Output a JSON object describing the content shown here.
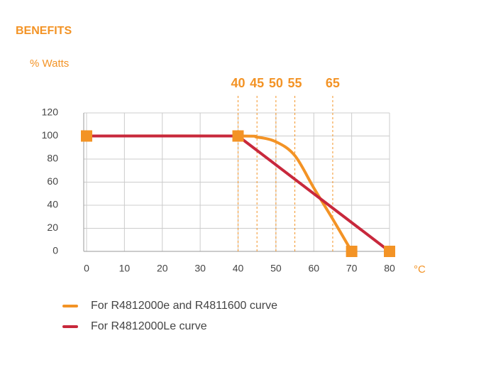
{
  "chart_data": {
    "type": "line",
    "header": "BENEFITS",
    "y_label": "% Watts",
    "x_label": "°C",
    "xlim": [
      0,
      80
    ],
    "xticks": [
      0,
      10,
      20,
      30,
      40,
      50,
      60,
      70,
      80
    ],
    "ylim": [
      0,
      120
    ],
    "yticks": [
      0,
      20,
      40,
      60,
      80,
      100,
      120
    ],
    "grid": true,
    "reference_lines": [
      40,
      45,
      50,
      55,
      65
    ],
    "reference_color": "#f39325",
    "marker_color": "#f39325",
    "series": [
      {
        "name": "For R4812000e and R4811600 curve",
        "color": "#f39325",
        "x": [
          0,
          40,
          45,
          50,
          55,
          60,
          65,
          70
        ],
        "values": [
          100,
          100,
          99,
          95,
          83,
          55,
          28,
          0
        ]
      },
      {
        "name": "For R4812000Le curve",
        "color": "#c8283c",
        "x": [
          0,
          40,
          80
        ],
        "values": [
          100,
          100,
          0
        ]
      }
    ]
  }
}
